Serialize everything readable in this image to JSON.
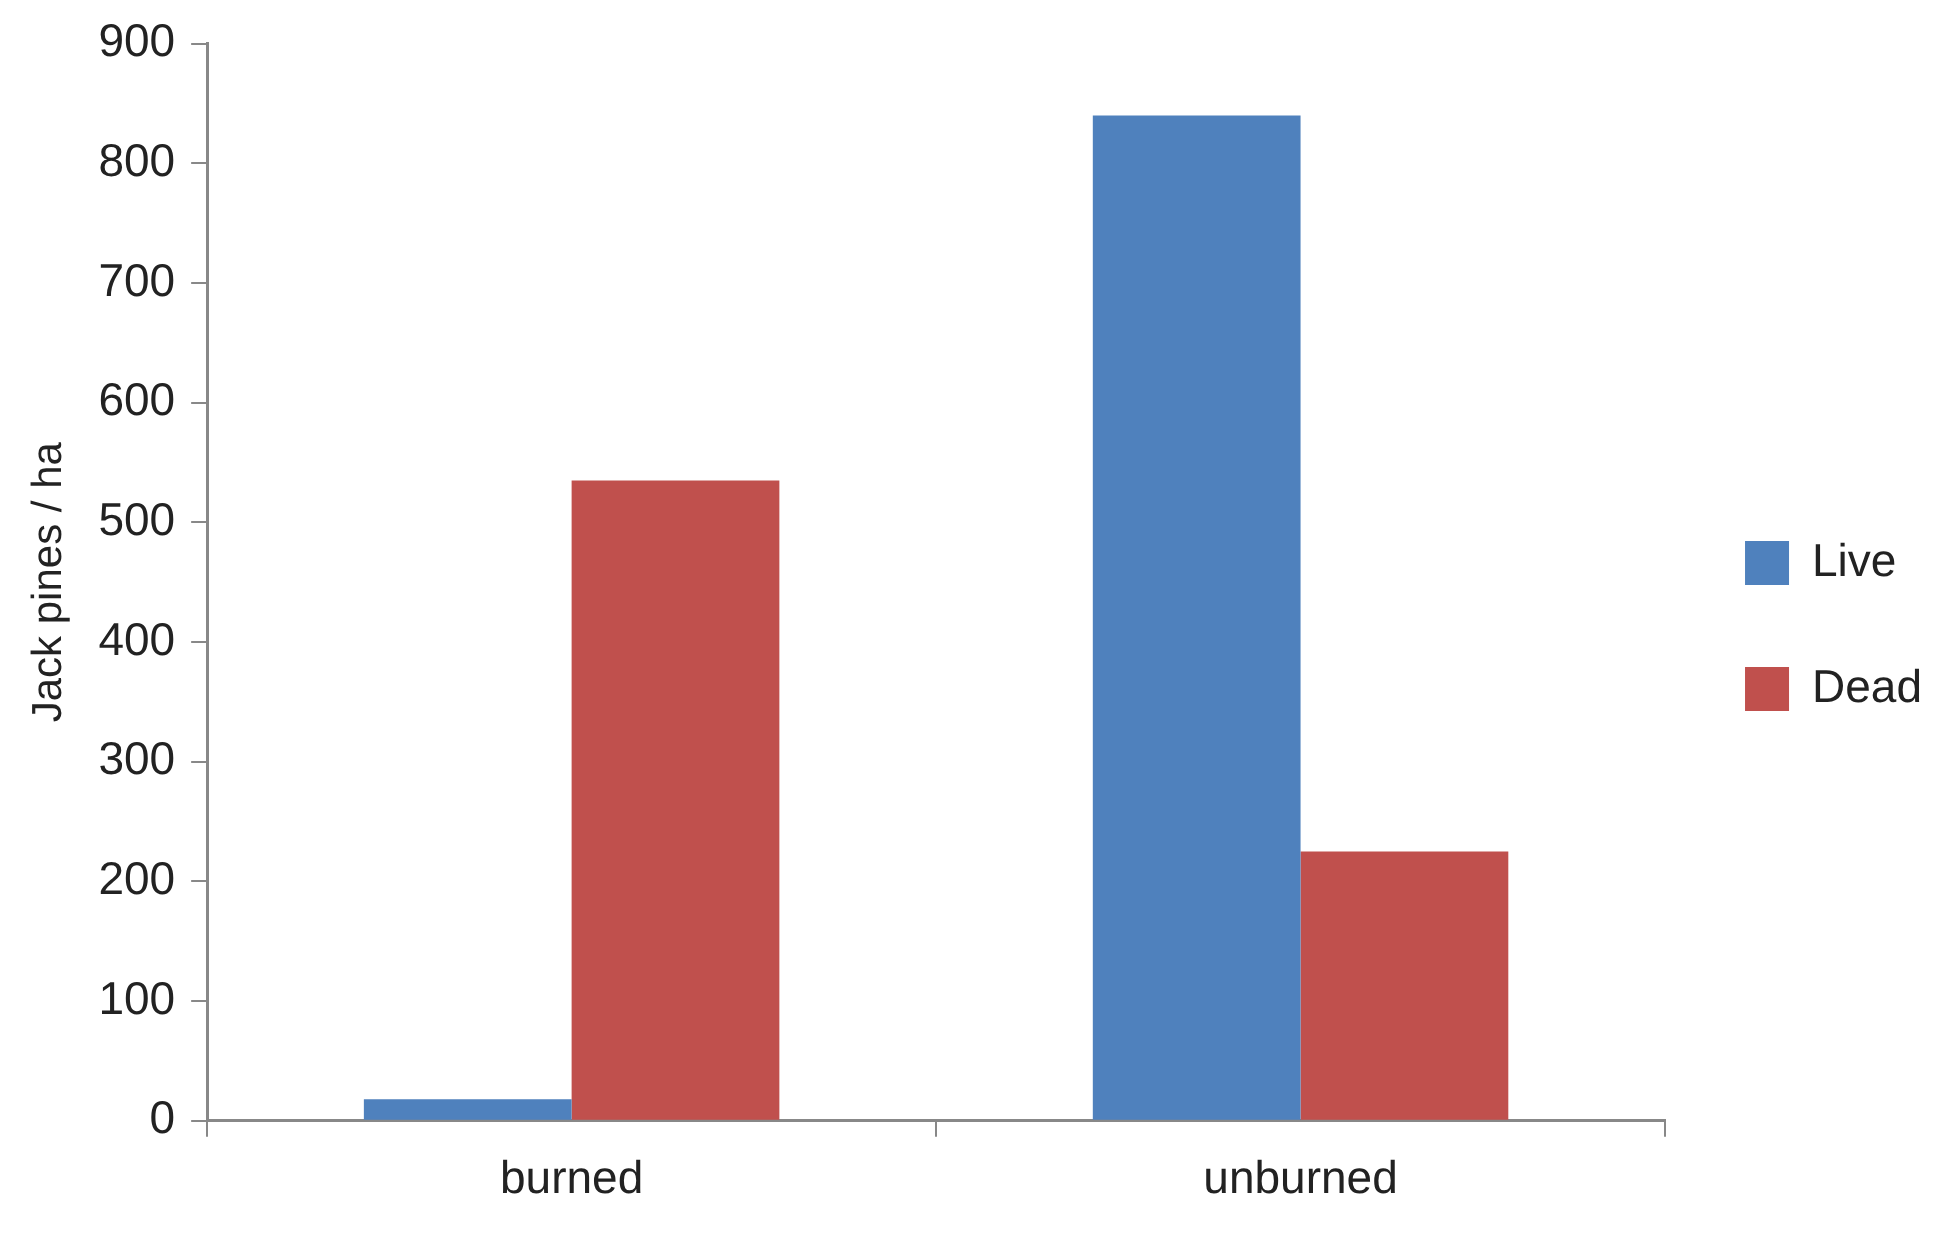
{
  "chart_data": {
    "type": "bar",
    "ylabel": "Jack pines / ha",
    "categories": [
      "burned",
      "unburned"
    ],
    "series": [
      {
        "name": "Live",
        "color": "#4f81bd",
        "values": [
          18,
          840
        ]
      },
      {
        "name": "Dead",
        "color": "#c0504d",
        "values": [
          535,
          225
        ]
      }
    ],
    "ylim": [
      0,
      900
    ],
    "yticks": [
      0,
      100,
      200,
      300,
      400,
      500,
      600,
      700,
      800,
      900
    ],
    "grid": false,
    "legend": "right"
  }
}
